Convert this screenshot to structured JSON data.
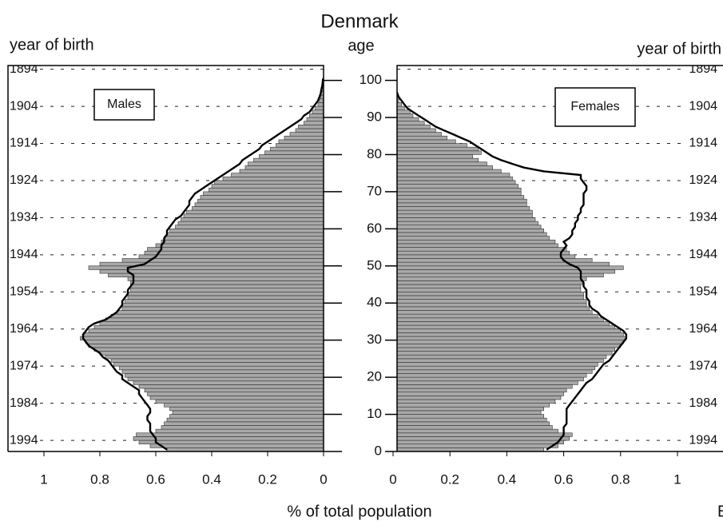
{
  "chart_data": {
    "type": "pyramid",
    "title": "Denmark",
    "ylabel": "age",
    "xlabel": "% of total population",
    "yob_label": "year of birth",
    "annotation": "E",
    "y": [
      0,
      1,
      2,
      3,
      4,
      5,
      6,
      7,
      8,
      9,
      10,
      11,
      12,
      13,
      14,
      15,
      16,
      17,
      18,
      19,
      20,
      21,
      22,
      23,
      24,
      25,
      26,
      27,
      28,
      29,
      30,
      31,
      32,
      33,
      34,
      35,
      36,
      37,
      38,
      39,
      40,
      41,
      42,
      43,
      44,
      45,
      46,
      47,
      48,
      49,
      50,
      51,
      52,
      53,
      54,
      55,
      56,
      57,
      58,
      59,
      60,
      61,
      62,
      63,
      64,
      65,
      66,
      67,
      68,
      69,
      70,
      71,
      72,
      73,
      74,
      75,
      76,
      77,
      78,
      79,
      80,
      81,
      82,
      83,
      84,
      85,
      86,
      87,
      88,
      89,
      90,
      91,
      92,
      93,
      94,
      95,
      96,
      97,
      98,
      99,
      100
    ],
    "ylim": [
      0,
      104
    ],
    "yticks": [
      0,
      10,
      20,
      30,
      40,
      50,
      60,
      70,
      80,
      90,
      100
    ],
    "yob_ticks": [
      {
        "value": 103,
        "label": "1894"
      },
      {
        "value": 93,
        "label": "1904"
      },
      {
        "value": 83,
        "label": "1914"
      },
      {
        "value": 73,
        "label": "1924"
      },
      {
        "value": 63,
        "label": "1934"
      },
      {
        "value": 53,
        "label": "1944"
      },
      {
        "value": 43,
        "label": "1954"
      },
      {
        "value": 33,
        "label": "1964"
      },
      {
        "value": 23,
        "label": "1974"
      },
      {
        "value": 13,
        "label": "1984"
      },
      {
        "value": 3,
        "label": "1994"
      }
    ],
    "bar_color": "#a8a8a8",
    "outline_color": "#000000",
    "panels": [
      {
        "label": "Males",
        "side": "left",
        "xlim": [
          1,
          0
        ],
        "xticks": [
          1,
          0.8,
          0.6,
          0.4,
          0.2,
          0
        ],
        "bars": [
          0.56,
          0.62,
          0.66,
          0.68,
          0.67,
          0.6,
          0.58,
          0.57,
          0.56,
          0.55,
          0.54,
          0.55,
          0.57,
          0.6,
          0.62,
          0.63,
          0.64,
          0.66,
          0.68,
          0.7,
          0.71,
          0.72,
          0.73,
          0.75,
          0.76,
          0.78,
          0.8,
          0.82,
          0.84,
          0.85,
          0.87,
          0.86,
          0.84,
          0.82,
          0.8,
          0.78,
          0.76,
          0.74,
          0.72,
          0.72,
          0.71,
          0.7,
          0.7,
          0.69,
          0.69,
          0.69,
          0.7,
          0.77,
          0.8,
          0.84,
          0.8,
          0.72,
          0.66,
          0.64,
          0.63,
          0.6,
          0.58,
          0.57,
          0.56,
          0.55,
          0.53,
          0.52,
          0.51,
          0.5,
          0.49,
          0.47,
          0.46,
          0.45,
          0.44,
          0.43,
          0.41,
          0.4,
          0.39,
          0.36,
          0.33,
          0.3,
          0.28,
          0.27,
          0.25,
          0.23,
          0.21,
          0.19,
          0.17,
          0.16,
          0.14,
          0.12,
          0.1,
          0.09,
          0.07,
          0.06,
          0.05,
          0.04,
          0.03,
          0.02,
          0.015,
          0.01,
          0.008,
          0.005,
          0.003,
          0.002,
          0.001
        ],
        "outline": [
          0.56,
          0.58,
          0.6,
          0.6,
          0.61,
          0.62,
          0.62,
          0.62,
          0.63,
          0.63,
          0.62,
          0.62,
          0.63,
          0.64,
          0.65,
          0.66,
          0.66,
          0.68,
          0.7,
          0.72,
          0.72,
          0.74,
          0.75,
          0.76,
          0.77,
          0.79,
          0.8,
          0.82,
          0.84,
          0.85,
          0.86,
          0.86,
          0.85,
          0.84,
          0.82,
          0.78,
          0.76,
          0.74,
          0.73,
          0.72,
          0.72,
          0.71,
          0.7,
          0.7,
          0.69,
          0.68,
          0.68,
          0.68,
          0.7,
          0.7,
          0.64,
          0.62,
          0.6,
          0.59,
          0.58,
          0.58,
          0.57,
          0.57,
          0.56,
          0.56,
          0.55,
          0.54,
          0.53,
          0.51,
          0.5,
          0.49,
          0.48,
          0.48,
          0.47,
          0.46,
          0.44,
          0.42,
          0.4,
          0.38,
          0.36,
          0.34,
          0.32,
          0.3,
          0.29,
          0.27,
          0.25,
          0.23,
          0.22,
          0.2,
          0.18,
          0.16,
          0.14,
          0.12,
          0.1,
          0.08,
          0.07,
          0.05,
          0.04,
          0.03,
          0.02,
          0.015,
          0.01,
          0.008,
          0.005,
          0.003,
          0.002
        ]
      },
      {
        "label": "Females",
        "side": "right",
        "xlim": [
          0,
          1
        ],
        "xticks": [
          0,
          0.2,
          0.4,
          0.6,
          0.8,
          1
        ],
        "bars": [
          0.53,
          0.58,
          0.6,
          0.62,
          0.63,
          0.58,
          0.56,
          0.55,
          0.54,
          0.53,
          0.52,
          0.53,
          0.55,
          0.57,
          0.59,
          0.6,
          0.61,
          0.63,
          0.65,
          0.67,
          0.68,
          0.7,
          0.71,
          0.72,
          0.74,
          0.75,
          0.77,
          0.78,
          0.8,
          0.81,
          0.82,
          0.81,
          0.8,
          0.78,
          0.76,
          0.74,
          0.72,
          0.7,
          0.69,
          0.68,
          0.68,
          0.67,
          0.67,
          0.66,
          0.66,
          0.67,
          0.68,
          0.74,
          0.78,
          0.81,
          0.76,
          0.7,
          0.64,
          0.62,
          0.61,
          0.58,
          0.57,
          0.55,
          0.54,
          0.53,
          0.52,
          0.51,
          0.5,
          0.49,
          0.49,
          0.48,
          0.47,
          0.47,
          0.46,
          0.45,
          0.45,
          0.44,
          0.43,
          0.42,
          0.41,
          0.38,
          0.35,
          0.33,
          0.3,
          0.28,
          0.31,
          0.3,
          0.26,
          0.22,
          0.19,
          0.17,
          0.15,
          0.13,
          0.11,
          0.09,
          0.07,
          0.06,
          0.04,
          0.03,
          0.02,
          0.015,
          0.01,
          0.006,
          0.004,
          0.002,
          0.001
        ],
        "outline": [
          0.54,
          0.56,
          0.58,
          0.59,
          0.6,
          0.6,
          0.6,
          0.61,
          0.61,
          0.61,
          0.61,
          0.61,
          0.62,
          0.63,
          0.64,
          0.65,
          0.66,
          0.67,
          0.68,
          0.7,
          0.71,
          0.72,
          0.73,
          0.74,
          0.76,
          0.77,
          0.78,
          0.79,
          0.8,
          0.81,
          0.82,
          0.82,
          0.81,
          0.79,
          0.77,
          0.75,
          0.73,
          0.72,
          0.7,
          0.69,
          0.69,
          0.68,
          0.68,
          0.68,
          0.67,
          0.67,
          0.66,
          0.66,
          0.66,
          0.65,
          0.62,
          0.6,
          0.59,
          0.59,
          0.6,
          0.61,
          0.6,
          0.62,
          0.63,
          0.63,
          0.64,
          0.64,
          0.65,
          0.65,
          0.66,
          0.66,
          0.67,
          0.67,
          0.67,
          0.67,
          0.68,
          0.68,
          0.67,
          0.66,
          0.66,
          0.53,
          0.46,
          0.42,
          0.38,
          0.35,
          0.33,
          0.31,
          0.29,
          0.27,
          0.24,
          0.21,
          0.18,
          0.15,
          0.13,
          0.11,
          0.09,
          0.07,
          0.05,
          0.04,
          0.03,
          0.02,
          0.015,
          0.01,
          0.006,
          0.004,
          0.002
        ]
      }
    ]
  }
}
